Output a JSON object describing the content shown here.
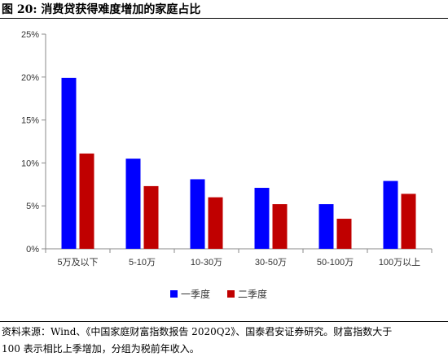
{
  "header": {
    "title": "图 20:  消费贷获得难度增加的家庭占比"
  },
  "source": {
    "line1": "资料来源：Wind、《中国家庭财富指数报告 2020Q2》、国泰君安证券研究。财富指数大于",
    "line2": "100 表示相比上季增加，分组为税前年收入。"
  },
  "chart_data": {
    "type": "bar",
    "title": "图 20:  消费贷获得难度增加的家庭占比",
    "xlabel": "",
    "ylabel": "",
    "categories": [
      "5万及以下",
      "5-10万",
      "10-30万",
      "30-50万",
      "50-100万",
      "100万以上"
    ],
    "series": [
      {
        "name": "一季度",
        "color": "#0000FF",
        "values": [
          19.9,
          10.5,
          8.1,
          7.1,
          5.2,
          7.9
        ]
      },
      {
        "name": "二季度",
        "color": "#C00000",
        "values": [
          11.1,
          7.3,
          6.0,
          5.2,
          3.5,
          6.4
        ]
      }
    ],
    "ylim": [
      0,
      25
    ],
    "yticks": [
      "0%",
      "5%",
      "10%",
      "15%",
      "20%",
      "25%"
    ],
    "grid": false,
    "legend": "bottom"
  }
}
